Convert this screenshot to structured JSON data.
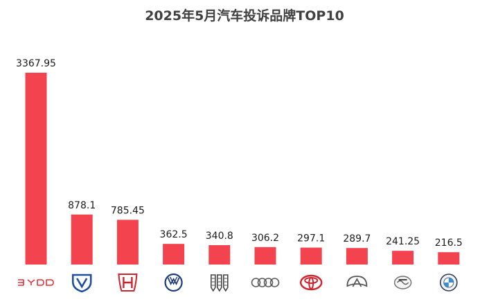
{
  "chart_data": {
    "type": "bar",
    "title": "2025年5月汽车投诉品牌TOP10",
    "xlabel": "",
    "ylabel": "",
    "ylim": [
      0,
      3367.95
    ],
    "grid": false,
    "legend": "none",
    "bar_color": "#f2434f",
    "categories": [
      {
        "label": "BYD",
        "logo": "byd-logo"
      },
      {
        "label": "Changan",
        "logo": "changan-logo"
      },
      {
        "label": "Honda",
        "logo": "honda-logo"
      },
      {
        "label": "Volkswagen",
        "logo": "volkswagen-logo"
      },
      {
        "label": "Geely",
        "logo": "geely-logo"
      },
      {
        "label": "Audi",
        "logo": "audi-logo"
      },
      {
        "label": "Toyota",
        "logo": "toyota-logo"
      },
      {
        "label": "Chery",
        "logo": "chery-logo"
      },
      {
        "label": "Dongfeng Fengshen",
        "logo": "dongfeng-logo"
      },
      {
        "label": "BMW",
        "logo": "bmw-logo"
      }
    ],
    "values": [
      3367.95,
      878.1,
      785.45,
      362.5,
      340.8,
      306.2,
      297.1,
      289.7,
      241.25,
      216.5
    ],
    "value_labels": [
      "3367.95",
      "878.1",
      "785.45",
      "362.5",
      "340.8",
      "306.2",
      "297.1",
      "289.7",
      "241.25",
      "216.5"
    ]
  }
}
